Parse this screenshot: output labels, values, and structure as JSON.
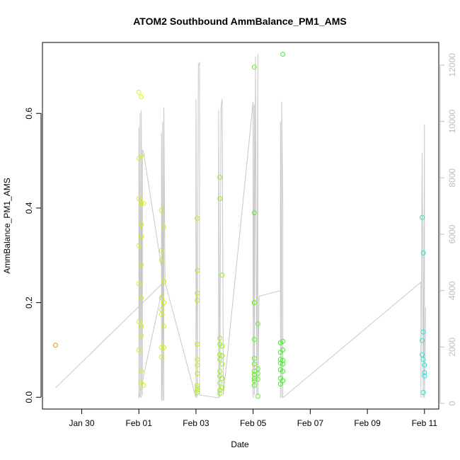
{
  "chart_data": {
    "type": "scatter",
    "title": "ATOM2 Southbound AmmBalance_PM1_AMS",
    "xlabel": "Date",
    "ylabel": "AmmBalance_PM1_AMS",
    "x_ticks": [
      "Jan 30",
      "Feb 01",
      "Feb 03",
      "Feb 05",
      "Feb 07",
      "Feb 09",
      "Feb 11"
    ],
    "y_ticks": [
      "0.0",
      "0.2",
      "0.4",
      "0.6"
    ],
    "y2_ticks": [
      "0",
      "2000",
      "4000",
      "6000",
      "8000",
      "10000",
      "12000"
    ],
    "xlim": [
      "2016-01-28T15:00",
      "2016-02-11T12:00"
    ],
    "ylim": [
      -0.025,
      0.75
    ],
    "y2lim": [
      -200,
      12800
    ],
    "grid": false,
    "colors": {
      "axis": "#000000",
      "secondary_axis": "#bdbdbd",
      "line": "#c8c8c8",
      "points_gradient": [
        "#f08c00",
        "#e6ef1e",
        "#b4f014",
        "#3ef51e",
        "#1ef090",
        "#22e8d2"
      ]
    },
    "series": [
      {
        "kind": "points",
        "points": [
          {
            "x": "2016-01-29T02:00",
            "y": 0.11
          },
          {
            "x": "2016-02-01T00:00",
            "y": 0.645
          },
          {
            "x": "2016-02-01T00:00",
            "y": 0.505
          },
          {
            "x": "2016-02-01T00:00",
            "y": 0.42
          },
          {
            "x": "2016-02-01T00:00",
            "y": 0.32
          },
          {
            "x": "2016-02-01T00:00",
            "y": 0.24
          },
          {
            "x": "2016-02-01T00:00",
            "y": 0.16
          },
          {
            "x": "2016-02-01T00:00",
            "y": 0.1
          },
          {
            "x": "2016-02-01T02:00",
            "y": 0.635
          },
          {
            "x": "2016-02-01T02:00",
            "y": 0.51
          },
          {
            "x": "2016-02-01T02:00",
            "y": 0.41
          },
          {
            "x": "2016-02-01T02:00",
            "y": 0.365
          },
          {
            "x": "2016-02-01T02:00",
            "y": 0.34
          },
          {
            "x": "2016-02-01T02:00",
            "y": 0.28
          },
          {
            "x": "2016-02-01T02:00",
            "y": 0.21
          },
          {
            "x": "2016-02-01T02:00",
            "y": 0.15
          },
          {
            "x": "2016-02-01T02:00",
            "y": 0.13
          },
          {
            "x": "2016-02-01T02:00",
            "y": 0.055
          },
          {
            "x": "2016-02-01T02:00",
            "y": 0.03
          },
          {
            "x": "2016-02-01T04:00",
            "y": 0.41
          },
          {
            "x": "2016-02-01T04:00",
            "y": 0.025
          },
          {
            "x": "2016-02-01T19:00",
            "y": 0.395
          },
          {
            "x": "2016-02-01T19:00",
            "y": 0.31
          },
          {
            "x": "2016-02-01T19:00",
            "y": 0.29
          },
          {
            "x": "2016-02-01T19:00",
            "y": 0.21
          },
          {
            "x": "2016-02-01T19:00",
            "y": 0.185
          },
          {
            "x": "2016-02-01T19:00",
            "y": 0.175
          },
          {
            "x": "2016-02-01T19:00",
            "y": 0.105
          },
          {
            "x": "2016-02-01T19:00",
            "y": 0.085
          },
          {
            "x": "2016-02-01T21:00",
            "y": 0.36
          },
          {
            "x": "2016-02-01T21:00",
            "y": 0.245
          },
          {
            "x": "2016-02-01T21:00",
            "y": 0.2
          },
          {
            "x": "2016-02-01T21:00",
            "y": 0.15
          },
          {
            "x": "2016-02-01T21:00",
            "y": 0.105
          },
          {
            "x": "2016-02-03T01:00",
            "y": 0.378
          },
          {
            "x": "2016-02-03T01:00",
            "y": 0.268
          },
          {
            "x": "2016-02-03T01:00",
            "y": 0.22
          },
          {
            "x": "2016-02-03T01:00",
            "y": 0.205
          },
          {
            "x": "2016-02-03T01:00",
            "y": 0.112
          },
          {
            "x": "2016-02-03T01:00",
            "y": 0.08
          },
          {
            "x": "2016-02-03T01:00",
            "y": 0.068
          },
          {
            "x": "2016-02-03T01:00",
            "y": 0.05
          },
          {
            "x": "2016-02-03T01:00",
            "y": 0.025
          },
          {
            "x": "2016-02-03T01:00",
            "y": 0.02
          },
          {
            "x": "2016-02-03T01:00",
            "y": 0.015
          },
          {
            "x": "2016-02-03T01:00",
            "y": 0.01
          },
          {
            "x": "2016-02-03T20:00",
            "y": 0.465
          },
          {
            "x": "2016-02-03T20:00",
            "y": 0.42
          },
          {
            "x": "2016-02-03T20:00",
            "y": 0.125
          },
          {
            "x": "2016-02-03T20:00",
            "y": 0.112
          },
          {
            "x": "2016-02-03T20:00",
            "y": 0.09
          },
          {
            "x": "2016-02-03T20:00",
            "y": 0.08
          },
          {
            "x": "2016-02-03T20:00",
            "y": 0.055
          },
          {
            "x": "2016-02-03T20:00",
            "y": 0.045
          },
          {
            "x": "2016-02-03T20:00",
            "y": 0.03
          },
          {
            "x": "2016-02-03T20:00",
            "y": 0.015
          },
          {
            "x": "2016-02-03T20:00",
            "y": 0.008
          },
          {
            "x": "2016-02-03T22:00",
            "y": 0.258
          },
          {
            "x": "2016-02-03T22:00",
            "y": 0.108
          },
          {
            "x": "2016-02-03T22:00",
            "y": 0.088
          },
          {
            "x": "2016-02-03T22:00",
            "y": 0.07
          },
          {
            "x": "2016-02-03T22:00",
            "y": 0.04
          },
          {
            "x": "2016-02-03T22:00",
            "y": 0.02
          },
          {
            "x": "2016-02-05T01:00",
            "y": 0.698
          },
          {
            "x": "2016-02-05T01:00",
            "y": 0.39
          },
          {
            "x": "2016-02-05T01:00",
            "y": 0.2
          },
          {
            "x": "2016-02-05T01:00",
            "y": 0.122
          },
          {
            "x": "2016-02-05T01:00",
            "y": 0.082
          },
          {
            "x": "2016-02-05T01:00",
            "y": 0.07
          },
          {
            "x": "2016-02-05T01:00",
            "y": 0.055
          },
          {
            "x": "2016-02-05T01:00",
            "y": 0.048
          },
          {
            "x": "2016-02-05T01:00",
            "y": 0.04
          },
          {
            "x": "2016-02-05T01:00",
            "y": 0.035
          },
          {
            "x": "2016-02-05T01:00",
            "y": 0.025
          },
          {
            "x": "2016-02-05T04:00",
            "y": 0.155
          },
          {
            "x": "2016-02-05T04:00",
            "y": 0.06
          },
          {
            "x": "2016-02-05T04:00",
            "y": 0.05
          },
          {
            "x": "2016-02-05T04:00",
            "y": 0.038
          },
          {
            "x": "2016-02-05T04:00",
            "y": 0.002
          },
          {
            "x": "2016-02-06T01:00",
            "y": 0.725
          },
          {
            "x": "2016-02-05T23:00",
            "y": 0.115
          },
          {
            "x": "2016-02-05T23:00",
            "y": 0.095
          },
          {
            "x": "2016-02-05T23:00",
            "y": 0.08
          },
          {
            "x": "2016-02-05T23:00",
            "y": 0.072
          },
          {
            "x": "2016-02-05T23:00",
            "y": 0.058
          },
          {
            "x": "2016-02-05T23:00",
            "y": 0.04
          },
          {
            "x": "2016-02-05T23:00",
            "y": 0.028
          },
          {
            "x": "2016-02-06T01:00",
            "y": 0.118
          },
          {
            "x": "2016-02-06T01:00",
            "y": 0.1
          },
          {
            "x": "2016-02-06T01:00",
            "y": 0.078
          },
          {
            "x": "2016-02-06T01:00",
            "y": 0.07
          },
          {
            "x": "2016-02-06T01:00",
            "y": 0.055
          },
          {
            "x": "2016-02-06T01:00",
            "y": 0.035
          },
          {
            "x": "2016-02-10T22:00",
            "y": 0.38
          },
          {
            "x": "2016-02-10T22:00",
            "y": 0.12
          },
          {
            "x": "2016-02-10T22:00",
            "y": 0.09
          },
          {
            "x": "2016-02-10T23:00",
            "y": 0.305
          },
          {
            "x": "2016-02-10T23:00",
            "y": 0.138
          },
          {
            "x": "2016-02-10T23:00",
            "y": 0.08
          },
          {
            "x": "2016-02-10T23:00",
            "y": 0.01
          },
          {
            "x": "2016-02-11T00:00",
            "y": 0.068
          },
          {
            "x": "2016-02-11T00:00",
            "y": 0.052
          },
          {
            "x": "2016-02-11T00:00",
            "y": 0.045
          }
        ]
      },
      {
        "kind": "line",
        "axis": "secondary",
        "points": [
          {
            "x": "2016-01-29T02:00",
            "y": 550
          },
          {
            "x": "2016-02-01T21:00",
            "y": 4300
          },
          {
            "x": "2016-02-01T00:00",
            "y": 200
          },
          {
            "x": "2016-02-01T00:00",
            "y": 9800
          },
          {
            "x": "2016-02-01T01:00",
            "y": 200
          },
          {
            "x": "2016-02-01T01:00",
            "y": 10300
          },
          {
            "x": "2016-02-01T02:00",
            "y": 200
          },
          {
            "x": "2016-02-01T02:00",
            "y": 10400
          },
          {
            "x": "2016-02-01T03:00",
            "y": 300
          },
          {
            "x": "2016-02-01T03:00",
            "y": 9000
          },
          {
            "x": "2016-02-01T04:00",
            "y": 8900
          },
          {
            "x": "2016-02-01T21:00",
            "y": 4300
          },
          {
            "x": "2016-02-01T19:00",
            "y": 100
          },
          {
            "x": "2016-02-01T19:00",
            "y": 9600
          },
          {
            "x": "2016-02-01T20:00",
            "y": 100
          },
          {
            "x": "2016-02-01T20:00",
            "y": 10000
          },
          {
            "x": "2016-02-01T21:00",
            "y": 100
          },
          {
            "x": "2016-02-01T21:00",
            "y": 10500
          },
          {
            "x": "2016-02-01T22:00",
            "y": 4300
          },
          {
            "x": "2016-02-03T00:00",
            "y": 200
          },
          {
            "x": "2016-02-03T00:00",
            "y": 10800
          },
          {
            "x": "2016-02-03T01:00",
            "y": 200
          },
          {
            "x": "2016-02-03T02:00",
            "y": 12000
          },
          {
            "x": "2016-02-03T03:00",
            "y": 12100
          },
          {
            "x": "2016-02-03T03:00",
            "y": 300
          },
          {
            "x": "2016-02-03T19:00",
            "y": 200
          },
          {
            "x": "2016-02-03T19:00",
            "y": 10400
          },
          {
            "x": "2016-02-03T20:00",
            "y": 200
          },
          {
            "x": "2016-02-03T21:00",
            "y": 10500
          },
          {
            "x": "2016-02-03T22:00",
            "y": 10800
          },
          {
            "x": "2016-02-03T23:00",
            "y": 300
          },
          {
            "x": "2016-02-05T00:00",
            "y": 10700
          },
          {
            "x": "2016-02-05T00:00",
            "y": 200
          },
          {
            "x": "2016-02-05T01:00",
            "y": 10600
          },
          {
            "x": "2016-02-05T01:00",
            "y": 300
          },
          {
            "x": "2016-02-05T02:00",
            "y": 12300
          },
          {
            "x": "2016-02-05T03:00",
            "y": 300
          },
          {
            "x": "2016-02-05T04:00",
            "y": 12400
          },
          {
            "x": "2016-02-05T04:00",
            "y": 300
          },
          {
            "x": "2016-02-05T05:00",
            "y": 3800
          },
          {
            "x": "2016-02-05T23:00",
            "y": 4000
          },
          {
            "x": "2016-02-05T23:00",
            "y": 200
          },
          {
            "x": "2016-02-05T23:00",
            "y": 10000
          },
          {
            "x": "2016-02-06T00:00",
            "y": 200
          },
          {
            "x": "2016-02-06T00:00",
            "y": 10700
          },
          {
            "x": "2016-02-06T01:00",
            "y": 6800
          },
          {
            "x": "2016-02-06T01:00",
            "y": 200
          },
          {
            "x": "2016-02-10T21:00",
            "y": 4300
          },
          {
            "x": "2016-02-10T21:00",
            "y": 200
          },
          {
            "x": "2016-02-10T22:00",
            "y": 8900
          },
          {
            "x": "2016-02-10T23:00",
            "y": 200
          },
          {
            "x": "2016-02-11T00:00",
            "y": 9900
          },
          {
            "x": "2016-02-11T00:00",
            "y": 200
          },
          {
            "x": "2016-02-11T01:00",
            "y": 3400
          }
        ]
      }
    ]
  }
}
